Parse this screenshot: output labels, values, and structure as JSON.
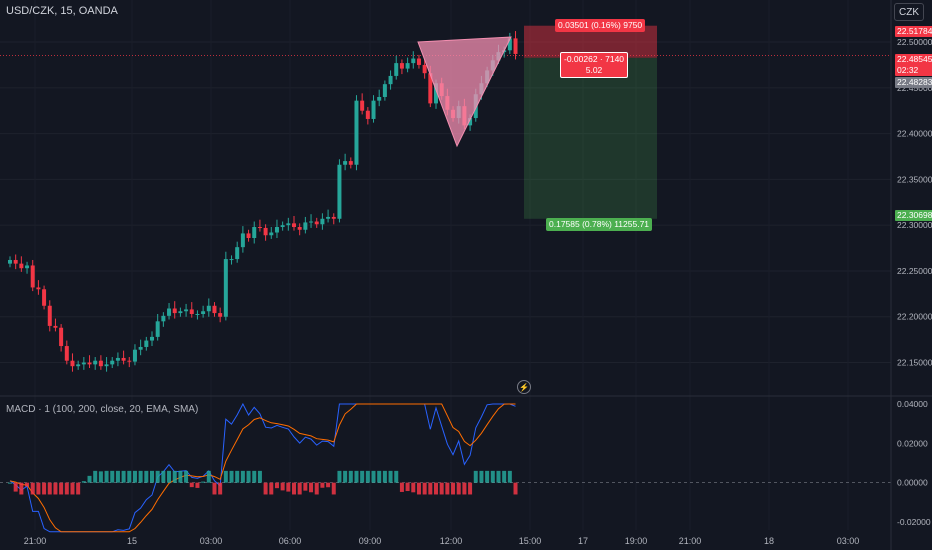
{
  "header": {
    "symbol": "USD/CZK, 15, OANDA",
    "currency_button": "CZK"
  },
  "macd": {
    "title": "MACD · 1 (100, 200, close, 20, EMA, SMA)"
  },
  "position": {
    "target_label": "0.03501 (0.16%) 9750",
    "pnl_label_line1": "-0.00262 · 7140",
    "pnl_label_line2": "5.02",
    "stop_label": "0.17585 (0.78%) 11255.71"
  },
  "price_tags": {
    "upper": "22.51784",
    "current": "22.48545",
    "countdown": "02:32",
    "entry": "22.48283",
    "lower": "22.30698"
  },
  "colors": {
    "up": "#26a69a",
    "down": "#f23645",
    "background": "#131722",
    "macd_line": "#2962ff",
    "signal_line": "#ff6d00"
  },
  "chart_data": [
    {
      "type": "candlestick",
      "title": "USD/CZK, 15, OANDA",
      "ylim": [
        22.12,
        22.535
      ],
      "y_ticks": [
        "22.50000",
        "22.45000",
        "22.40000",
        "22.35000",
        "22.30000",
        "22.25000",
        "22.20000",
        "22.15000"
      ],
      "x_ticks": [
        "21:00",
        "15",
        "03:00",
        "06:00",
        "09:00",
        "12:00",
        "15:00",
        "17",
        "19:00",
        "21:00",
        "18",
        "03:00"
      ],
      "close": [
        22.262,
        22.258,
        22.253,
        22.256,
        22.232,
        22.23,
        22.212,
        22.19,
        22.188,
        22.168,
        22.152,
        22.146,
        22.148,
        22.15,
        22.148,
        22.152,
        22.146,
        22.148,
        22.152,
        22.155,
        22.152,
        22.151,
        22.164,
        22.167,
        22.174,
        22.178,
        22.195,
        22.201,
        22.209,
        22.204,
        22.206,
        22.208,
        22.203,
        22.203,
        22.206,
        22.212,
        22.204,
        22.2,
        22.263,
        22.263,
        22.276,
        22.291,
        22.286,
        22.298,
        22.297,
        22.289,
        22.292,
        22.298,
        22.3,
        22.302,
        22.298,
        22.295,
        22.303,
        22.304,
        22.301,
        22.307,
        22.309,
        22.307,
        22.366,
        22.37,
        22.366,
        22.436,
        22.425,
        22.416,
        22.436,
        22.44,
        22.454,
        22.463,
        22.477,
        22.471,
        22.477,
        22.482,
        22.475,
        22.466,
        22.433,
        22.455,
        22.441,
        22.426,
        22.417,
        22.43,
        22.409,
        22.417,
        22.443,
        22.455,
        22.469,
        22.48,
        22.489,
        22.491,
        22.504,
        22.487
      ],
      "macd_histogram_range": [
        -0.02,
        0.04
      ],
      "macd_y_ticks": [
        "0.04000",
        "0.02000",
        "0.00000",
        "-0.02000"
      ]
    }
  ]
}
